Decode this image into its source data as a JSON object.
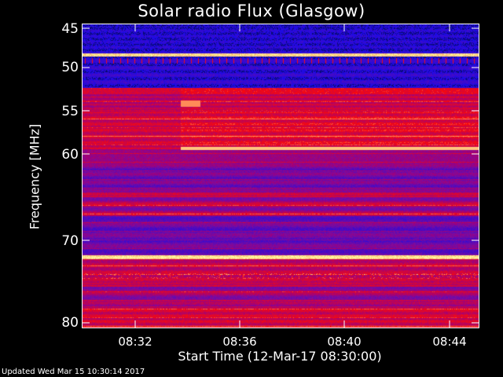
{
  "chart_data": {
    "type": "heatmap",
    "title": "Solar radio Flux (Glasgow)",
    "xlabel": "Start Time (12-Mar-17 08:30:00)",
    "ylabel": "Frequency [MHz]",
    "x_ticks": [
      "08:32",
      "08:36",
      "08:40",
      "08:44"
    ],
    "y_ticks": [
      "45",
      "50",
      "55",
      "60",
      "70",
      "80"
    ],
    "xlim": [
      "08:30:00",
      "08:45:00"
    ],
    "ylim": [
      45,
      80
    ],
    "y_scale": "reciprocal",
    "colors": {
      "low": "#0000ff",
      "mid": "#ff0000",
      "high": "#ffff80"
    }
  },
  "footer": {
    "updated": "Updated Wed Mar 15 10:30:14 2017"
  }
}
